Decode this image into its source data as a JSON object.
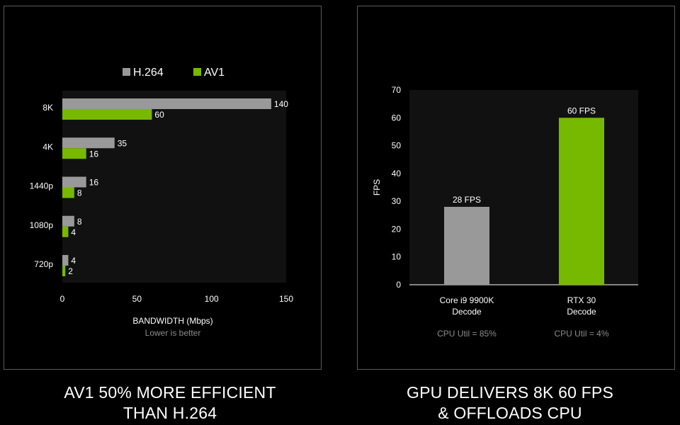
{
  "colors": {
    "background": "#000000",
    "plot_bg": "#111111",
    "h264": "#999999",
    "av1": "#76b900",
    "muted": "#8a8a8a",
    "border": "#5a5a5a"
  },
  "chart_data": [
    {
      "type": "bar",
      "orientation": "horizontal",
      "categories": [
        "8K",
        "4K",
        "1440p",
        "1080p",
        "720p"
      ],
      "series": [
        {
          "name": "H.264",
          "color": "#999999",
          "values": [
            140,
            35,
            16,
            8,
            4
          ]
        },
        {
          "name": "AV1",
          "color": "#76b900",
          "values": [
            60,
            16,
            8,
            4,
            2
          ]
        }
      ],
      "xlabel": "BANDWIDTH (Mbps)",
      "xlabel_note": "Lower is better",
      "xlim": [
        0,
        150
      ],
      "xticks": [
        0,
        50,
        100,
        150
      ],
      "legend": "top",
      "grid": false
    },
    {
      "type": "bar",
      "categories": [
        [
          "Core i9 9900K",
          "Decode"
        ],
        [
          "RTX 30",
          "Decode"
        ]
      ],
      "series": [
        {
          "values": [
            28,
            60
          ],
          "colors": [
            "#999999",
            "#76b900"
          ]
        }
      ],
      "data_labels": [
        "28 FPS",
        "60 FPS"
      ],
      "notes": [
        "CPU Util = 85%",
        "CPU Util = 4%"
      ],
      "ylabel": "FPS",
      "ylim": [
        0,
        70
      ],
      "yticks": [
        0,
        10,
        20,
        30,
        40,
        50,
        60,
        70
      ],
      "grid": false
    }
  ],
  "captions": {
    "left": [
      "AV1 50% MORE EFFICIENT",
      "THAN H.264"
    ],
    "right": [
      "GPU DELIVERS 8K 60 FPS",
      "& OFFLOADS CPU"
    ]
  }
}
